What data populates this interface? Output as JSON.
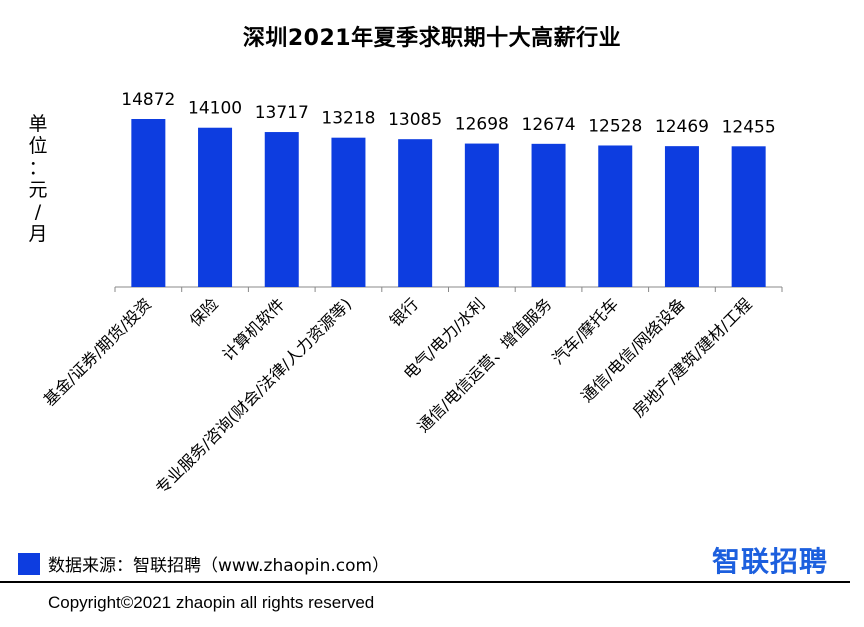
{
  "chart_data": {
    "type": "bar",
    "title": "深圳2021年夏季求职期十大高薪行业",
    "ylabel": "单位：元/月",
    "categories": [
      "基金/证券/期货/投资",
      "保险",
      "计算机软件",
      "专业服务/咨询(财会/法律/人力资源等)",
      "银行",
      "电气/电力/水利",
      "通信/电信运营、增值服务",
      "汽车/摩托车",
      "通信/电信/网络设备",
      "房地产/建筑/建材/工程"
    ],
    "values": [
      14872,
      14100,
      13717,
      13218,
      13085,
      12698,
      12674,
      12528,
      12469,
      12455
    ],
    "bar_color": "#0d3de0",
    "grid": false,
    "data_labels": true
  },
  "unit_chars": [
    "单",
    "位",
    "：",
    "元",
    "/",
    "月"
  ],
  "legend": {
    "text": "数据来源：智联招聘（www.zhaopin.com）",
    "color": "#0d3de0"
  },
  "brand": {
    "logo_text": "智联招聘",
    "color": "#1c5fde"
  },
  "footer": {
    "copyright": "Copyright©2021 zhaopin all rights reserved"
  }
}
